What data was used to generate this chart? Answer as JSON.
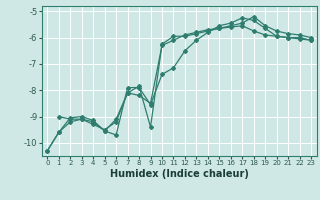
{
  "xlabel": "Humidex (Indice chaleur)",
  "bg_color": "#cfe8e6",
  "grid_color": "#ffffff",
  "line_color": "#2e7d6e",
  "xlim": [
    -0.5,
    23.5
  ],
  "ylim": [
    -10.5,
    -4.8
  ],
  "yticks": [
    -10,
    -9,
    -8,
    -7,
    -6,
    -5
  ],
  "xticks": [
    0,
    1,
    2,
    3,
    4,
    5,
    6,
    7,
    8,
    9,
    10,
    11,
    12,
    13,
    14,
    15,
    16,
    17,
    18,
    19,
    20,
    21,
    22,
    23
  ],
  "line1_x": [
    0,
    1,
    2,
    3,
    4,
    5,
    6,
    7,
    8,
    9,
    10,
    11,
    12,
    13,
    14,
    15,
    16,
    17,
    18,
    19,
    20,
    21,
    22,
    23
  ],
  "line1_y": [
    -10.3,
    -9.6,
    -9.2,
    -9.1,
    -9.3,
    -9.5,
    -9.2,
    -8.1,
    -8.2,
    -8.5,
    -6.3,
    -6.1,
    -5.9,
    -5.8,
    -5.7,
    -5.65,
    -5.6,
    -5.55,
    -5.75,
    -5.9,
    -5.95,
    -6.0,
    -6.0,
    -6.1
  ],
  "line2_x": [
    0,
    1,
    2,
    3,
    4,
    5,
    6,
    7,
    8,
    9,
    10,
    11,
    12,
    13,
    14,
    15,
    16,
    17,
    18,
    19,
    20,
    21,
    22,
    23
  ],
  "line2_y": [
    -10.3,
    -9.6,
    -9.05,
    -9.0,
    -9.15,
    -9.55,
    -9.7,
    -7.9,
    -7.9,
    -8.55,
    -7.4,
    -7.15,
    -6.5,
    -6.1,
    -5.8,
    -5.55,
    -5.45,
    -5.25,
    -5.35,
    -5.65,
    -5.95,
    -6.0,
    -6.05,
    -6.1
  ],
  "line3_x": [
    1,
    2,
    3,
    4,
    5,
    6,
    7,
    8,
    9,
    10,
    11,
    12,
    13,
    14,
    15,
    16,
    17,
    18,
    19,
    20,
    21,
    22,
    23
  ],
  "line3_y": [
    -9.0,
    -9.1,
    -9.1,
    -9.2,
    -9.55,
    -9.1,
    -8.1,
    -7.85,
    -9.4,
    -6.25,
    -5.95,
    -5.95,
    -5.85,
    -5.75,
    -5.65,
    -5.55,
    -5.45,
    -5.2,
    -5.55,
    -5.75,
    -5.85,
    -5.9,
    -6.0
  ]
}
